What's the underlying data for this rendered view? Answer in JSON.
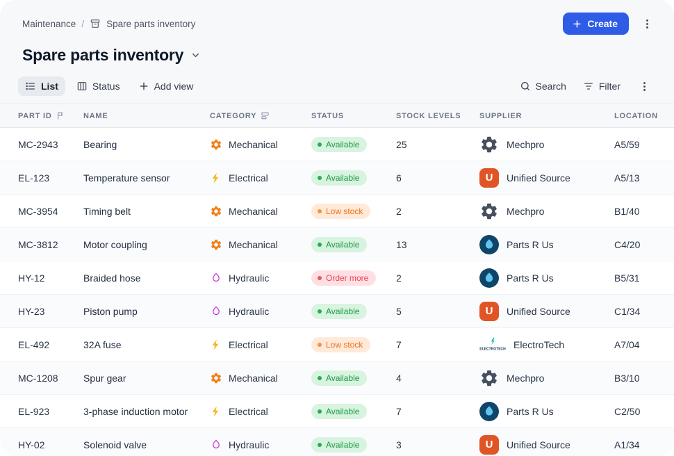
{
  "breadcrumb": {
    "parent": "Maintenance",
    "separator": "/",
    "current": "Spare parts inventory"
  },
  "title": "Spare parts inventory",
  "actions": {
    "create_label": "Create"
  },
  "toolbar": {
    "view_list": "List",
    "view_status": "Status",
    "add_view": "Add view",
    "search": "Search",
    "filter": "Filter"
  },
  "table": {
    "columns": [
      {
        "id": "part_id",
        "label": "Part ID",
        "icon": "flag-icon"
      },
      {
        "id": "name",
        "label": "Name"
      },
      {
        "id": "category",
        "label": "Category",
        "icon": "field-type-icon"
      },
      {
        "id": "status",
        "label": "Status"
      },
      {
        "id": "stock",
        "label": "Stock levels"
      },
      {
        "id": "supplier",
        "label": "Supplier"
      },
      {
        "id": "location",
        "label": "Location"
      }
    ],
    "rows": [
      {
        "part_id": "MC-2943",
        "name": "Bearing",
        "category": "Mechanical",
        "category_type": "mechanical",
        "category_icon": "gear-icon",
        "status": "Available",
        "status_type": "available",
        "stock": "25",
        "supplier": "Mechpro",
        "supplier_logo": "mechpro",
        "location": "A5/59"
      },
      {
        "part_id": "EL-123",
        "name": "Temperature sensor",
        "category": "Electrical",
        "category_type": "electrical",
        "category_icon": "lightning-icon",
        "status": "Available",
        "status_type": "available",
        "stock": "6",
        "supplier": "Unified Source",
        "supplier_logo": "unified",
        "location": "A5/13"
      },
      {
        "part_id": "MC-3954",
        "name": "Timing belt",
        "category": "Mechanical",
        "category_type": "mechanical",
        "category_icon": "gear-icon",
        "status": "Low stock",
        "status_type": "low",
        "stock": "2",
        "supplier": "Mechpro",
        "supplier_logo": "mechpro",
        "location": "B1/40"
      },
      {
        "part_id": "MC-3812",
        "name": "Motor coupling",
        "category": "Mechanical",
        "category_type": "mechanical",
        "category_icon": "gear-icon",
        "status": "Available",
        "status_type": "available",
        "stock": "13",
        "supplier": "Parts R Us",
        "supplier_logo": "partsrus",
        "location": "C4/20"
      },
      {
        "part_id": "HY-12",
        "name": "Braided hose",
        "category": "Hydraulic",
        "category_type": "hydraulic",
        "category_icon": "droplet-icon",
        "status": "Order more",
        "status_type": "order",
        "stock": "2",
        "supplier": "Parts R Us",
        "supplier_logo": "partsrus",
        "location": "B5/31"
      },
      {
        "part_id": "HY-23",
        "name": "Piston pump",
        "category": "Hydraulic",
        "category_type": "hydraulic",
        "category_icon": "droplet-icon",
        "status": "Available",
        "status_type": "available",
        "stock": "5",
        "supplier": "Unified Source",
        "supplier_logo": "unified",
        "location": "C1/34"
      },
      {
        "part_id": "EL-492",
        "name": "32A fuse",
        "category": "Electrical",
        "category_type": "electrical",
        "category_icon": "lightning-icon",
        "status": "Low stock",
        "status_type": "low",
        "stock": "7",
        "supplier": "ElectroTech",
        "supplier_logo": "electrotech",
        "location": "A7/04"
      },
      {
        "part_id": "MC-1208",
        "name": "Spur gear",
        "category": "Mechanical",
        "category_type": "mechanical",
        "category_icon": "gear-icon",
        "status": "Available",
        "status_type": "available",
        "stock": "4",
        "supplier": "Mechpro",
        "supplier_logo": "mechpro",
        "location": "B3/10"
      },
      {
        "part_id": "EL-923",
        "name": "3-phase induction motor",
        "category": "Electrical",
        "category_type": "electrical",
        "category_icon": "lightning-icon",
        "status": "Available",
        "status_type": "available",
        "stock": "7",
        "supplier": "Parts R Us",
        "supplier_logo": "partsrus",
        "location": "C2/50"
      },
      {
        "part_id": "HY-02",
        "name": "Solenoid valve",
        "category": "Hydraulic",
        "category_type": "hydraulic",
        "category_icon": "droplet-icon",
        "status": "Available",
        "status_type": "available",
        "stock": "3",
        "supplier": "Unified Source",
        "supplier_logo": "unified",
        "location": "A1/34"
      }
    ]
  },
  "colors": {
    "accent_blue": "#2e5ce6",
    "status": {
      "available": {
        "bg": "#d8f3df",
        "text": "#199a45",
        "dot": "#23ad52"
      },
      "low": {
        "bg": "#ffe9d9",
        "text": "#ed7117",
        "dot": "#f4913e"
      },
      "order": {
        "bg": "#ffdfe3",
        "text": "#e8474f",
        "dot": "#ef5560"
      }
    },
    "category": {
      "mechanical": "#f08019",
      "electrical": "#f5b81c",
      "hydraulic": "#ce3fd6"
    }
  }
}
